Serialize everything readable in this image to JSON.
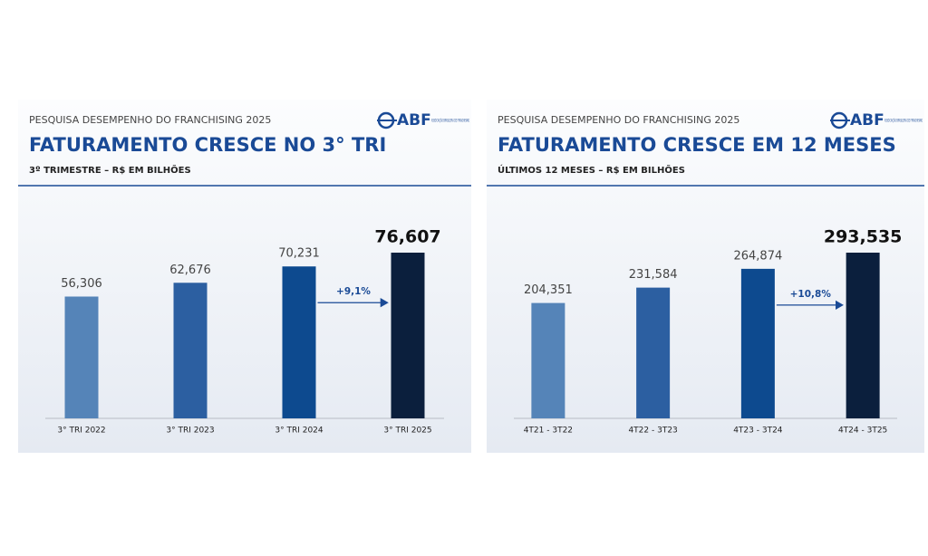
{
  "chart_data": [
    {
      "type": "bar",
      "header": "PESQUISA DESEMPENHO DO FRANCHISING 2025",
      "logo": "ABF",
      "logo_subtitle": "ASSOCIAÇÃO BRASILEIRA DE FRANCHISING",
      "title": "FATURAMENTO CRESCE NO 3° TRI",
      "subtitle": "3º TRIMESTRE – R$ EM BILHÕES",
      "categories": [
        "3° TRI 2022",
        "3° TRI 2023",
        "3° TRI 2024",
        "3° TRI 2025"
      ],
      "values": [
        56.306,
        62.676,
        70.231,
        76.607
      ],
      "value_labels": [
        "56,306",
        "62,676",
        "70,231",
        "76,607"
      ],
      "colors": [
        "#5584b8",
        "#2c5fa1",
        "#0d4a8f",
        "#0b1f3d"
      ],
      "annotation": "+9,1%"
    },
    {
      "type": "bar",
      "header": "PESQUISA DESEMPENHO DO FRANCHISING 2025",
      "logo": "ABF",
      "logo_subtitle": "ASSOCIAÇÃO BRASILEIRA DE FRANCHISING",
      "title": "FATURAMENTO CRESCE EM 12 MESES",
      "subtitle": "ÚLTIMOS 12 MESES – R$ EM BILHÕES",
      "categories": [
        "4T21 - 3T22",
        "4T22 - 3T23",
        "4T23 - 3T24",
        "4T24 - 3T25"
      ],
      "values": [
        204.351,
        231.584,
        264.874,
        293.535
      ],
      "value_labels": [
        "204,351",
        "231,584",
        "264,874",
        "293,535"
      ],
      "colors": [
        "#5584b8",
        "#2c5fa1",
        "#0d4a8f",
        "#0b1f3d"
      ],
      "annotation": "+10,8%"
    }
  ]
}
